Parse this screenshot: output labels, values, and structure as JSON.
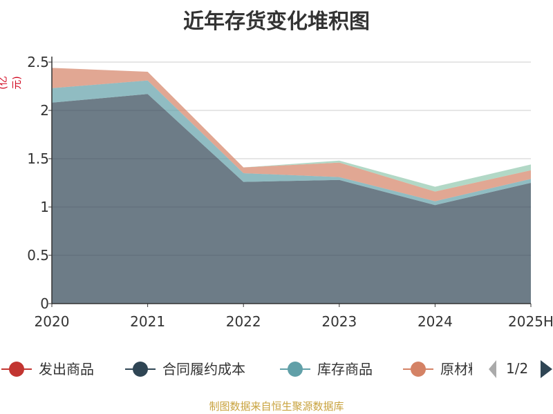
{
  "header": {
    "title": "近年存货变化堆积图"
  },
  "unit_label": "(亿元)",
  "legend": {
    "pager_text": "1/2"
  },
  "footer": {
    "source": "制图数据来自恒生聚源数据库"
  },
  "chart_data": {
    "type": "area",
    "stacked": true,
    "title": "近年存货变化堆积图",
    "ylabel": "(亿元)",
    "x": [
      "2020",
      "2021",
      "2022",
      "2023",
      "2024",
      "2025H"
    ],
    "ylim": [
      0,
      2.5
    ],
    "yticks": [
      "0",
      "0.5",
      "1",
      "1.5",
      "2",
      "2.5"
    ],
    "grid": true,
    "legend_position": "bottom",
    "series": [
      {
        "name": "发出商品",
        "color": "#c23531",
        "values": [
          0,
          0,
          0,
          0,
          0,
          0
        ],
        "legend_visible": true
      },
      {
        "name": "合同履约成本",
        "color": "#2f4554",
        "values": [
          2.08,
          2.17,
          1.26,
          1.28,
          1.02,
          1.25
        ],
        "legend_visible": true
      },
      {
        "name": "库存商品",
        "color": "#61a0a8",
        "values": [
          0.15,
          0.14,
          0.09,
          0.03,
          0.04,
          0.04
        ],
        "legend_visible": true
      },
      {
        "name": "原材料",
        "color": "#d48265",
        "values": [
          0.21,
          0.09,
          0.06,
          0.15,
          0.1,
          0.09
        ],
        "legend_visible": true
      },
      {
        "name": "",
        "color": "#91c7ae",
        "values": [
          0,
          0,
          0,
          0.02,
          0.05,
          0.06
        ],
        "legend_visible": false
      }
    ]
  }
}
